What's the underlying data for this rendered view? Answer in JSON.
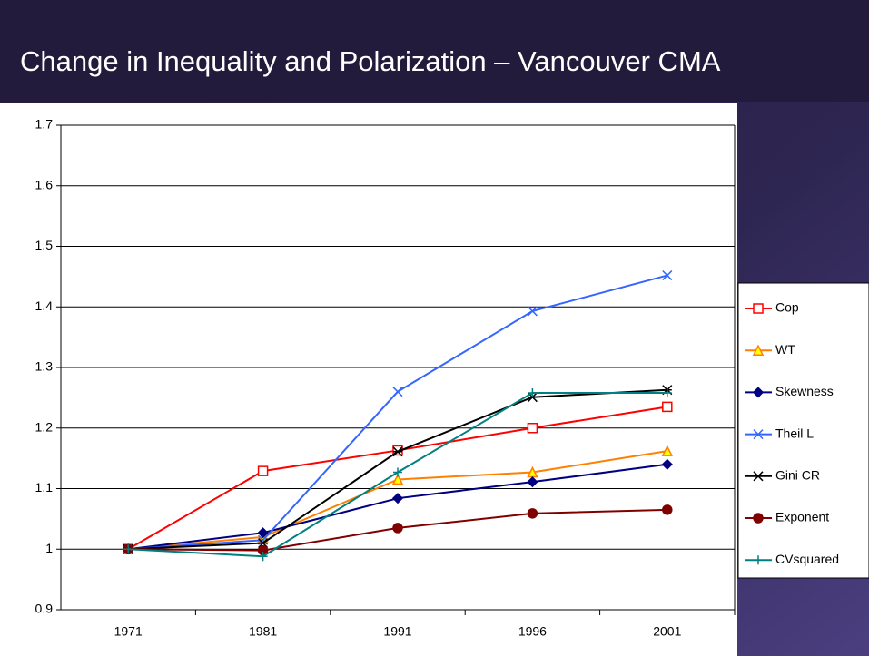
{
  "chart_data": {
    "type": "line",
    "title": "Change in Inequality and Polarization – Vancouver CMA",
    "categories": [
      "1971",
      "1981",
      "1991",
      "1996",
      "2001"
    ],
    "ylim": [
      0.9,
      1.7
    ],
    "yticks": [
      0.9,
      1,
      1.1,
      1.2,
      1.3,
      1.4,
      1.5,
      1.6,
      1.7
    ],
    "grid": true,
    "legend": "right",
    "series": [
      {
        "name": "Cop",
        "color": "#ff0000",
        "marker": "square",
        "values": [
          1,
          1.129,
          1.163,
          1.2,
          1.235
        ]
      },
      {
        "name": "WT",
        "color": "#ff8000",
        "marker": "triangle",
        "values": [
          1,
          1.02,
          1.115,
          1.127,
          1.162
        ]
      },
      {
        "name": "Skewness",
        "color": "#000080",
        "marker": "diamond",
        "values": [
          1,
          1.027,
          1.084,
          1.111,
          1.14
        ]
      },
      {
        "name": "Theil L",
        "color": "#3366ff",
        "marker": "x",
        "values": [
          1,
          1.015,
          1.26,
          1.393,
          1.452
        ]
      },
      {
        "name": "Gini CR",
        "color": "#000000",
        "marker": "star",
        "values": [
          1,
          1.01,
          1.161,
          1.251,
          1.263
        ]
      },
      {
        "name": "Exponent",
        "color": "#800000",
        "marker": "circle",
        "values": [
          1,
          0.998,
          1.035,
          1.059,
          1.065
        ]
      },
      {
        "name": "CVsquared",
        "color": "#008080",
        "marker": "plus",
        "values": [
          1,
          0.988,
          1.127,
          1.258,
          1.258
        ]
      }
    ]
  }
}
